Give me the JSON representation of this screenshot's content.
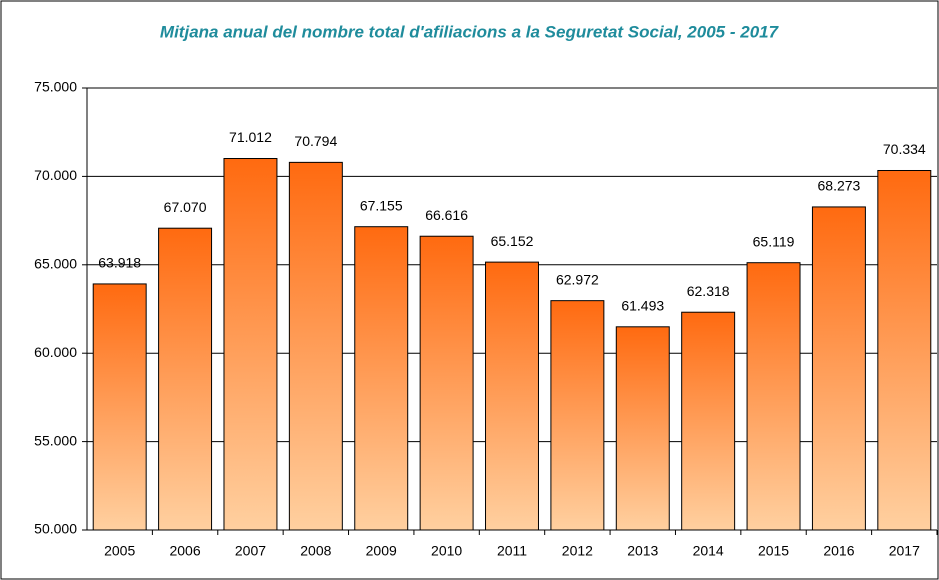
{
  "chart_data": {
    "type": "bar",
    "title": "Mitjana anual del nombre total d'afiliacions a la Seguretat Social, 2005 - 2017",
    "categories": [
      "2005",
      "2006",
      "2007",
      "2008",
      "2009",
      "2010",
      "2011",
      "2012",
      "2013",
      "2014",
      "2015",
      "2016",
      "2017"
    ],
    "values": [
      63918,
      67070,
      71012,
      70794,
      67155,
      66616,
      65152,
      62972,
      61493,
      62318,
      65119,
      68273,
      70334
    ],
    "value_labels": [
      "63.918",
      "67.070",
      "71.012",
      "70.794",
      "67.155",
      "66.616",
      "65.152",
      "62.972",
      "61.493",
      "62.318",
      "65.119",
      "68.273",
      "70.334"
    ],
    "color": "#ff6a10",
    "ylim": [
      50000,
      75000
    ],
    "yticks": [
      {
        "value": 50000,
        "label": "50.000"
      },
      {
        "value": 55000,
        "label": "55.000"
      },
      {
        "value": 60000,
        "label": "60.000"
      },
      {
        "value": 65000,
        "label": "65.000"
      },
      {
        "value": 70000,
        "label": "70.000"
      },
      {
        "value": 75000,
        "label": "75.000"
      }
    ],
    "grid": true
  }
}
